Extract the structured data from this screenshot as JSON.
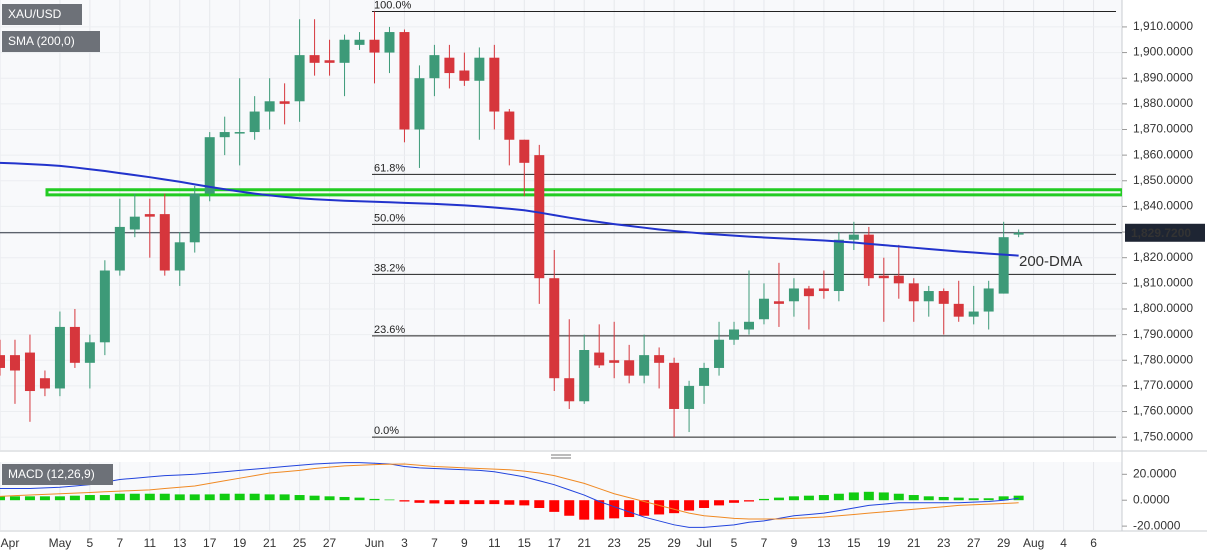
{
  "chart_data": [
    {
      "type": "candlestick",
      "title": "XAU/USD",
      "categories": [
        "Apr",
        null,
        null,
        null,
        "May",
        null,
        "5",
        null,
        "7",
        null,
        "11",
        null,
        "13",
        null,
        "17",
        null,
        "19",
        null,
        "21",
        null,
        "25",
        null,
        "27",
        null,
        null,
        "Jun",
        null,
        "3",
        null,
        "7",
        null,
        "9",
        null,
        "11",
        null,
        "15",
        null,
        "17",
        null,
        "21",
        null,
        "23",
        null,
        "25",
        null,
        "29",
        null,
        "Jul",
        null,
        "5",
        null,
        "7",
        null,
        "9",
        null,
        "13",
        null,
        "15",
        null,
        "19",
        null,
        "21",
        null,
        "23",
        null,
        "27",
        null,
        "29",
        null,
        "Aug",
        null,
        "4",
        null,
        "6"
      ],
      "open": [
        1782,
        1782,
        1783,
        1773,
        1769,
        1793,
        1779,
        1787,
        1815,
        1831,
        1837,
        1837,
        1815,
        1826,
        1845,
        1867,
        1869,
        1869,
        1877,
        1881,
        1881,
        1899,
        1897,
        1896,
        1903,
        1905,
        1900,
        1908,
        1870,
        1890,
        1898,
        1893,
        1889,
        1898,
        1877,
        1866,
        1860,
        1812,
        1773,
        1764,
        1783,
        1780,
        1780,
        1774,
        1782,
        1779,
        1761,
        1770,
        1777,
        1788,
        1792,
        1796,
        1803,
        1803,
        1808,
        1808,
        1807,
        1827,
        1829,
        1813,
        1813,
        1810,
        1803,
        1807,
        1802,
        1797,
        1799,
        1806,
        1829,
        null,
        null,
        null,
        null,
        null
      ],
      "high": [
        1788,
        1788,
        1790,
        1776,
        1799,
        1800,
        1790,
        1819,
        1843,
        1845,
        1843,
        1845,
        1830,
        1848,
        1869,
        1875,
        1890,
        1883,
        1890,
        1888,
        1913,
        1913,
        1905,
        1907,
        1908,
        1916,
        1910,
        1909,
        1895,
        1903,
        1903,
        1900,
        1902,
        1903,
        1878,
        1866,
        1864,
        1823,
        1796,
        1790,
        1794,
        1795,
        1786,
        1790,
        1785,
        1781,
        1772,
        1779,
        1795,
        1795,
        1815,
        1810,
        1818,
        1812,
        1809,
        1815,
        1830,
        1834,
        1832,
        1820,
        1825,
        1812,
        1809,
        1808,
        1811,
        1809,
        1811,
        1834,
        1831,
        null,
        null,
        null,
        null,
        null
      ],
      "low": [
        1774,
        1763,
        1756,
        1766,
        1766,
        1777,
        1769,
        1782,
        1813,
        1828,
        1820,
        1813,
        1809,
        1822,
        1842,
        1860,
        1856,
        1866,
        1870,
        1872,
        1873,
        1891,
        1891,
        1883,
        1901,
        1888,
        1892,
        1865,
        1855,
        1883,
        1886,
        1887,
        1866,
        1870,
        1856,
        1844,
        1802,
        1768,
        1761,
        1763,
        1777,
        1773,
        1771,
        1771,
        1769,
        1750,
        1752,
        1763,
        1774,
        1786,
        1790,
        1794,
        1793,
        1797,
        1792,
        1804,
        1803,
        1823,
        1809,
        1795,
        1804,
        1795,
        1797,
        1790,
        1795,
        1794,
        1792,
        1806,
        1828,
        null,
        null,
        null,
        null,
        null
      ],
      "close": [
        1777,
        1776,
        1768,
        1769,
        1793,
        1779,
        1787,
        1815,
        1832,
        1836,
        1836,
        1815,
        1826,
        1845,
        1867,
        1869,
        1869,
        1877,
        1881,
        1880,
        1899,
        1896,
        1896,
        1905,
        1905,
        1900,
        1908,
        1870,
        1890,
        1899,
        1892,
        1889,
        1898,
        1877,
        1866,
        1857,
        1812,
        1773,
        1764,
        1784,
        1778,
        1779,
        1774,
        1782,
        1779,
        1761,
        1770,
        1777,
        1788,
        1792,
        1795,
        1804,
        1802,
        1808,
        1805,
        1807,
        1827,
        1829,
        1812,
        1812,
        1810,
        1803,
        1807,
        1802,
        1797,
        1799,
        1808,
        1828,
        1829.72,
        null,
        null,
        null,
        null,
        null
      ],
      "up_color": "#3d9a78",
      "down_color": "#d6363c",
      "series": [
        {
          "name": "SMA (200,0)",
          "color": "#2233cc",
          "values": [
            1857,
            1856.8,
            1856.5,
            1856.2,
            1855.8,
            1855.2,
            1854.5,
            1853.8,
            1853,
            1852.2,
            1851.4,
            1850.5,
            1849.6,
            1848.6,
            1847.6,
            1846.7,
            1845.8,
            1845,
            1844.3,
            1843.7,
            1843.2,
            1842.8,
            1842.5,
            1842.2,
            1842,
            1841.8,
            1841.6,
            1841.4,
            1841.2,
            1841,
            1840.7,
            1840.4,
            1840,
            1839.6,
            1839.1,
            1838.5,
            1837.6,
            1836.6,
            1835.6,
            1834.7,
            1833.9,
            1833.1,
            1832.4,
            1831.7,
            1831,
            1830.4,
            1829.9,
            1829.4,
            1829,
            1828.6,
            1828.2,
            1827.9,
            1827.6,
            1827.3,
            1827,
            1826.7,
            1826.3,
            1825.9,
            1825.4,
            1824.9,
            1824.4,
            1823.9,
            1823.4,
            1822.9,
            1822.4,
            1822,
            1821.6,
            1821.2,
            1820.8,
            null,
            null,
            null,
            null,
            null
          ]
        }
      ],
      "sma_label": "200-DMA",
      "ylim": [
        1745,
        1920.5
      ],
      "yticks": [
        {
          "value": 1750,
          "label": "1,750.0000"
        },
        {
          "value": 1760,
          "label": "1,760.0000"
        },
        {
          "value": 1770,
          "label": "1,770.0000"
        },
        {
          "value": 1780,
          "label": "1,780.0000"
        },
        {
          "value": 1790,
          "label": "1,790.0000"
        },
        {
          "value": 1800,
          "label": "1,800.0000"
        },
        {
          "value": 1810,
          "label": "1,810.0000"
        },
        {
          "value": 1820,
          "label": "1,820.0000"
        },
        {
          "value": 1830,
          "label": "1,830.0000"
        },
        {
          "value": 1840,
          "label": "1,840.0000"
        },
        {
          "value": 1850,
          "label": "1,850.0000"
        },
        {
          "value": 1860,
          "label": "1,860.0000"
        },
        {
          "value": 1870,
          "label": "1,870.0000"
        },
        {
          "value": 1880,
          "label": "1,880.0000"
        },
        {
          "value": 1890,
          "label": "1,890.0000"
        },
        {
          "value": 1900,
          "label": "1,900.0000"
        },
        {
          "value": 1910,
          "label": "1,910.0000"
        }
      ],
      "fib_levels": [
        {
          "value": 1916,
          "label": "100.0%"
        },
        {
          "value": 1852.5,
          "label": "61.8%"
        },
        {
          "value": 1833,
          "label": "50.0%"
        },
        {
          "value": 1813.5,
          "label": "38.2%"
        },
        {
          "value": 1789.5,
          "label": "23.6%"
        },
        {
          "value": 1750,
          "label": "0.0%"
        }
      ],
      "zone": {
        "values": [
          1844.5,
          1846.5
        ],
        "color": "#22cc22"
      },
      "last_price": {
        "value": 1829.72,
        "label": "1,829.7200"
      },
      "grid": true
    },
    {
      "type": "macd",
      "title": "MACD (12,26,9)",
      "series": [
        {
          "values": [
            3,
            3,
            3,
            3,
            3,
            3.5,
            4,
            4,
            5,
            5,
            5,
            5,
            4.5,
            4.5,
            4.5,
            5,
            5,
            5,
            4.5,
            4.5,
            4,
            3.5,
            3,
            2.5,
            2,
            1,
            0.5,
            -1,
            -2,
            -2.5,
            -3,
            -3,
            -3,
            -3,
            -3.5,
            -4,
            -6,
            -9,
            -12,
            -15,
            -15,
            -14,
            -13,
            -12,
            -11,
            -10,
            -8,
            -6,
            -4,
            -2,
            -1,
            1,
            2,
            3,
            3.5,
            4,
            5,
            6,
            6.5,
            6,
            5,
            4,
            3,
            2.5,
            2,
            1.5,
            1.5,
            3,
            3.5,
            null,
            null,
            null,
            null,
            null
          ],
          "up_color": "#11cc11",
          "down_color": "#ff0000"
        },
        {
          "color": "#2244dd",
          "values": [
            9,
            9,
            9,
            9.5,
            10,
            11,
            12,
            14,
            16,
            17,
            18,
            19,
            19.5,
            20,
            21,
            22,
            23,
            24,
            25,
            26,
            27,
            28,
            28.5,
            29,
            29,
            28.5,
            28,
            26,
            25,
            24.5,
            24,
            23.5,
            23,
            22,
            20,
            18,
            15,
            12,
            8,
            4,
            -1,
            -5,
            -9,
            -13,
            -16,
            -19,
            -21,
            -21,
            -20,
            -19,
            -17,
            -16,
            -14,
            -12,
            -11,
            -10,
            -8,
            -6,
            -4,
            -3,
            -2,
            -2,
            -2,
            -2,
            -2,
            -1.5,
            -1,
            0,
            1.5,
            null,
            null,
            null,
            null,
            null
          ]
        },
        {
          "color": "#f08a24",
          "values": [
            3,
            3.5,
            4,
            4.5,
            5,
            5.5,
            6,
            6.5,
            7,
            7.5,
            8,
            9,
            10,
            11,
            13,
            15,
            17,
            19,
            21,
            22,
            23,
            24.5,
            25.5,
            26.5,
            27,
            27.5,
            27.8,
            28,
            27,
            26,
            25.5,
            25,
            24.5,
            24,
            23.5,
            22.5,
            21,
            19,
            16,
            13,
            9,
            5,
            2,
            -1,
            -4,
            -7,
            -10,
            -12,
            -13,
            -14,
            -14.5,
            -14.5,
            -14.5,
            -14,
            -13.5,
            -13,
            -12,
            -11,
            -10,
            -9,
            -8,
            -7,
            -6,
            -5,
            -4,
            -3.5,
            -3,
            -2.5,
            -2,
            null,
            null,
            null,
            null,
            null
          ]
        }
      ],
      "ylim": [
        -23,
        29.5
      ],
      "yticks": [
        {
          "value": 20,
          "label": "20.0000"
        },
        {
          "value": 0,
          "label": "0.0000"
        },
        {
          "value": -20,
          "label": "-20.0000"
        }
      ]
    }
  ]
}
